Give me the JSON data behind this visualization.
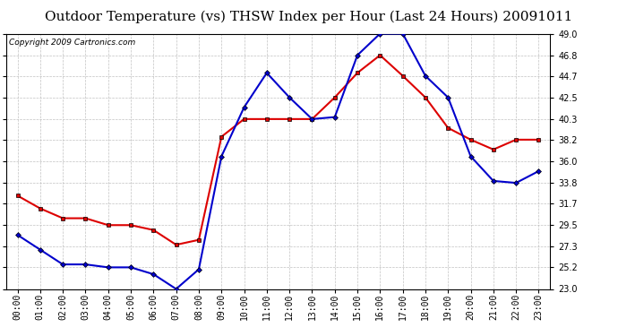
{
  "title": "Outdoor Temperature (vs) THSW Index per Hour (Last 24 Hours) 20091011",
  "copyright": "Copyright 2009 Cartronics.com",
  "hours": [
    "00:00",
    "01:00",
    "02:00",
    "03:00",
    "04:00",
    "05:00",
    "06:00",
    "07:00",
    "08:00",
    "09:00",
    "10:00",
    "11:00",
    "12:00",
    "13:00",
    "14:00",
    "15:00",
    "16:00",
    "17:00",
    "18:00",
    "19:00",
    "20:00",
    "21:00",
    "22:00",
    "23:00"
  ],
  "temp_red": [
    32.5,
    31.2,
    30.2,
    30.2,
    29.5,
    29.5,
    29.0,
    27.5,
    28.0,
    38.5,
    40.3,
    40.3,
    40.3,
    40.3,
    42.5,
    45.0,
    46.8,
    44.7,
    42.5,
    39.4,
    38.2,
    37.2,
    38.2,
    38.2
  ],
  "thsw_blue": [
    28.5,
    27.0,
    25.5,
    25.5,
    25.2,
    25.2,
    24.5,
    23.0,
    25.0,
    36.5,
    41.5,
    45.0,
    42.5,
    40.3,
    40.5,
    46.8,
    49.0,
    49.0,
    44.7,
    42.5,
    36.5,
    34.0,
    33.8,
    35.0
  ],
  "ylim": [
    23.0,
    49.0
  ],
  "yticks": [
    23.0,
    25.2,
    27.3,
    29.5,
    31.7,
    33.8,
    36.0,
    38.2,
    40.3,
    42.5,
    44.7,
    46.8,
    49.0
  ],
  "bg_color": "#ffffff",
  "grid_color": "#bbbbbb",
  "red_color": "#dd0000",
  "blue_color": "#0000cc",
  "title_fontsize": 11,
  "copyright_fontsize": 6.5,
  "tick_fontsize": 7
}
